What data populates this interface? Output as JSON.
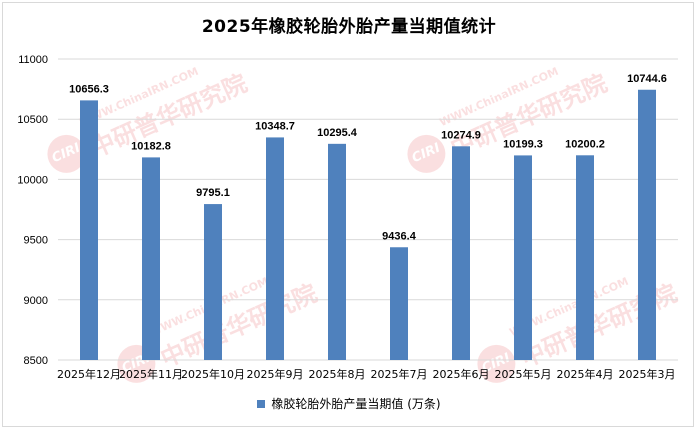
{
  "colors": {
    "bar": "#4f81bd",
    "gridline": "#d9d9d9",
    "axis_text": "#000000",
    "watermark": "#e8565a"
  },
  "watermark": {
    "logo": "CIRI",
    "url": "WWW.ChinaIRN.COM",
    "name": "中研普华研究院"
  },
  "chart_data": {
    "type": "bar",
    "title": "2025年橡胶轮胎外胎产量当期值统计",
    "categories": [
      "2025年12月",
      "2025年11月",
      "2025年10月",
      "2025年9月",
      "2025年8月",
      "2025年7月",
      "2025年6月",
      "2025年5月",
      "2025年4月",
      "2025年3月"
    ],
    "series": [
      {
        "name": "橡胶轮胎外胎产量当期值 (万条)",
        "values": [
          10656.3,
          10182.8,
          9795.1,
          10348.7,
          10295.4,
          9436.4,
          10274.9,
          10199.3,
          10200.2,
          10744.6
        ]
      }
    ],
    "ylim": [
      8500,
      11000
    ],
    "yticks": [
      8500,
      9000,
      9500,
      10000,
      10500,
      11000
    ],
    "grid": true,
    "data_labels": true,
    "legend_position": "bottom"
  }
}
